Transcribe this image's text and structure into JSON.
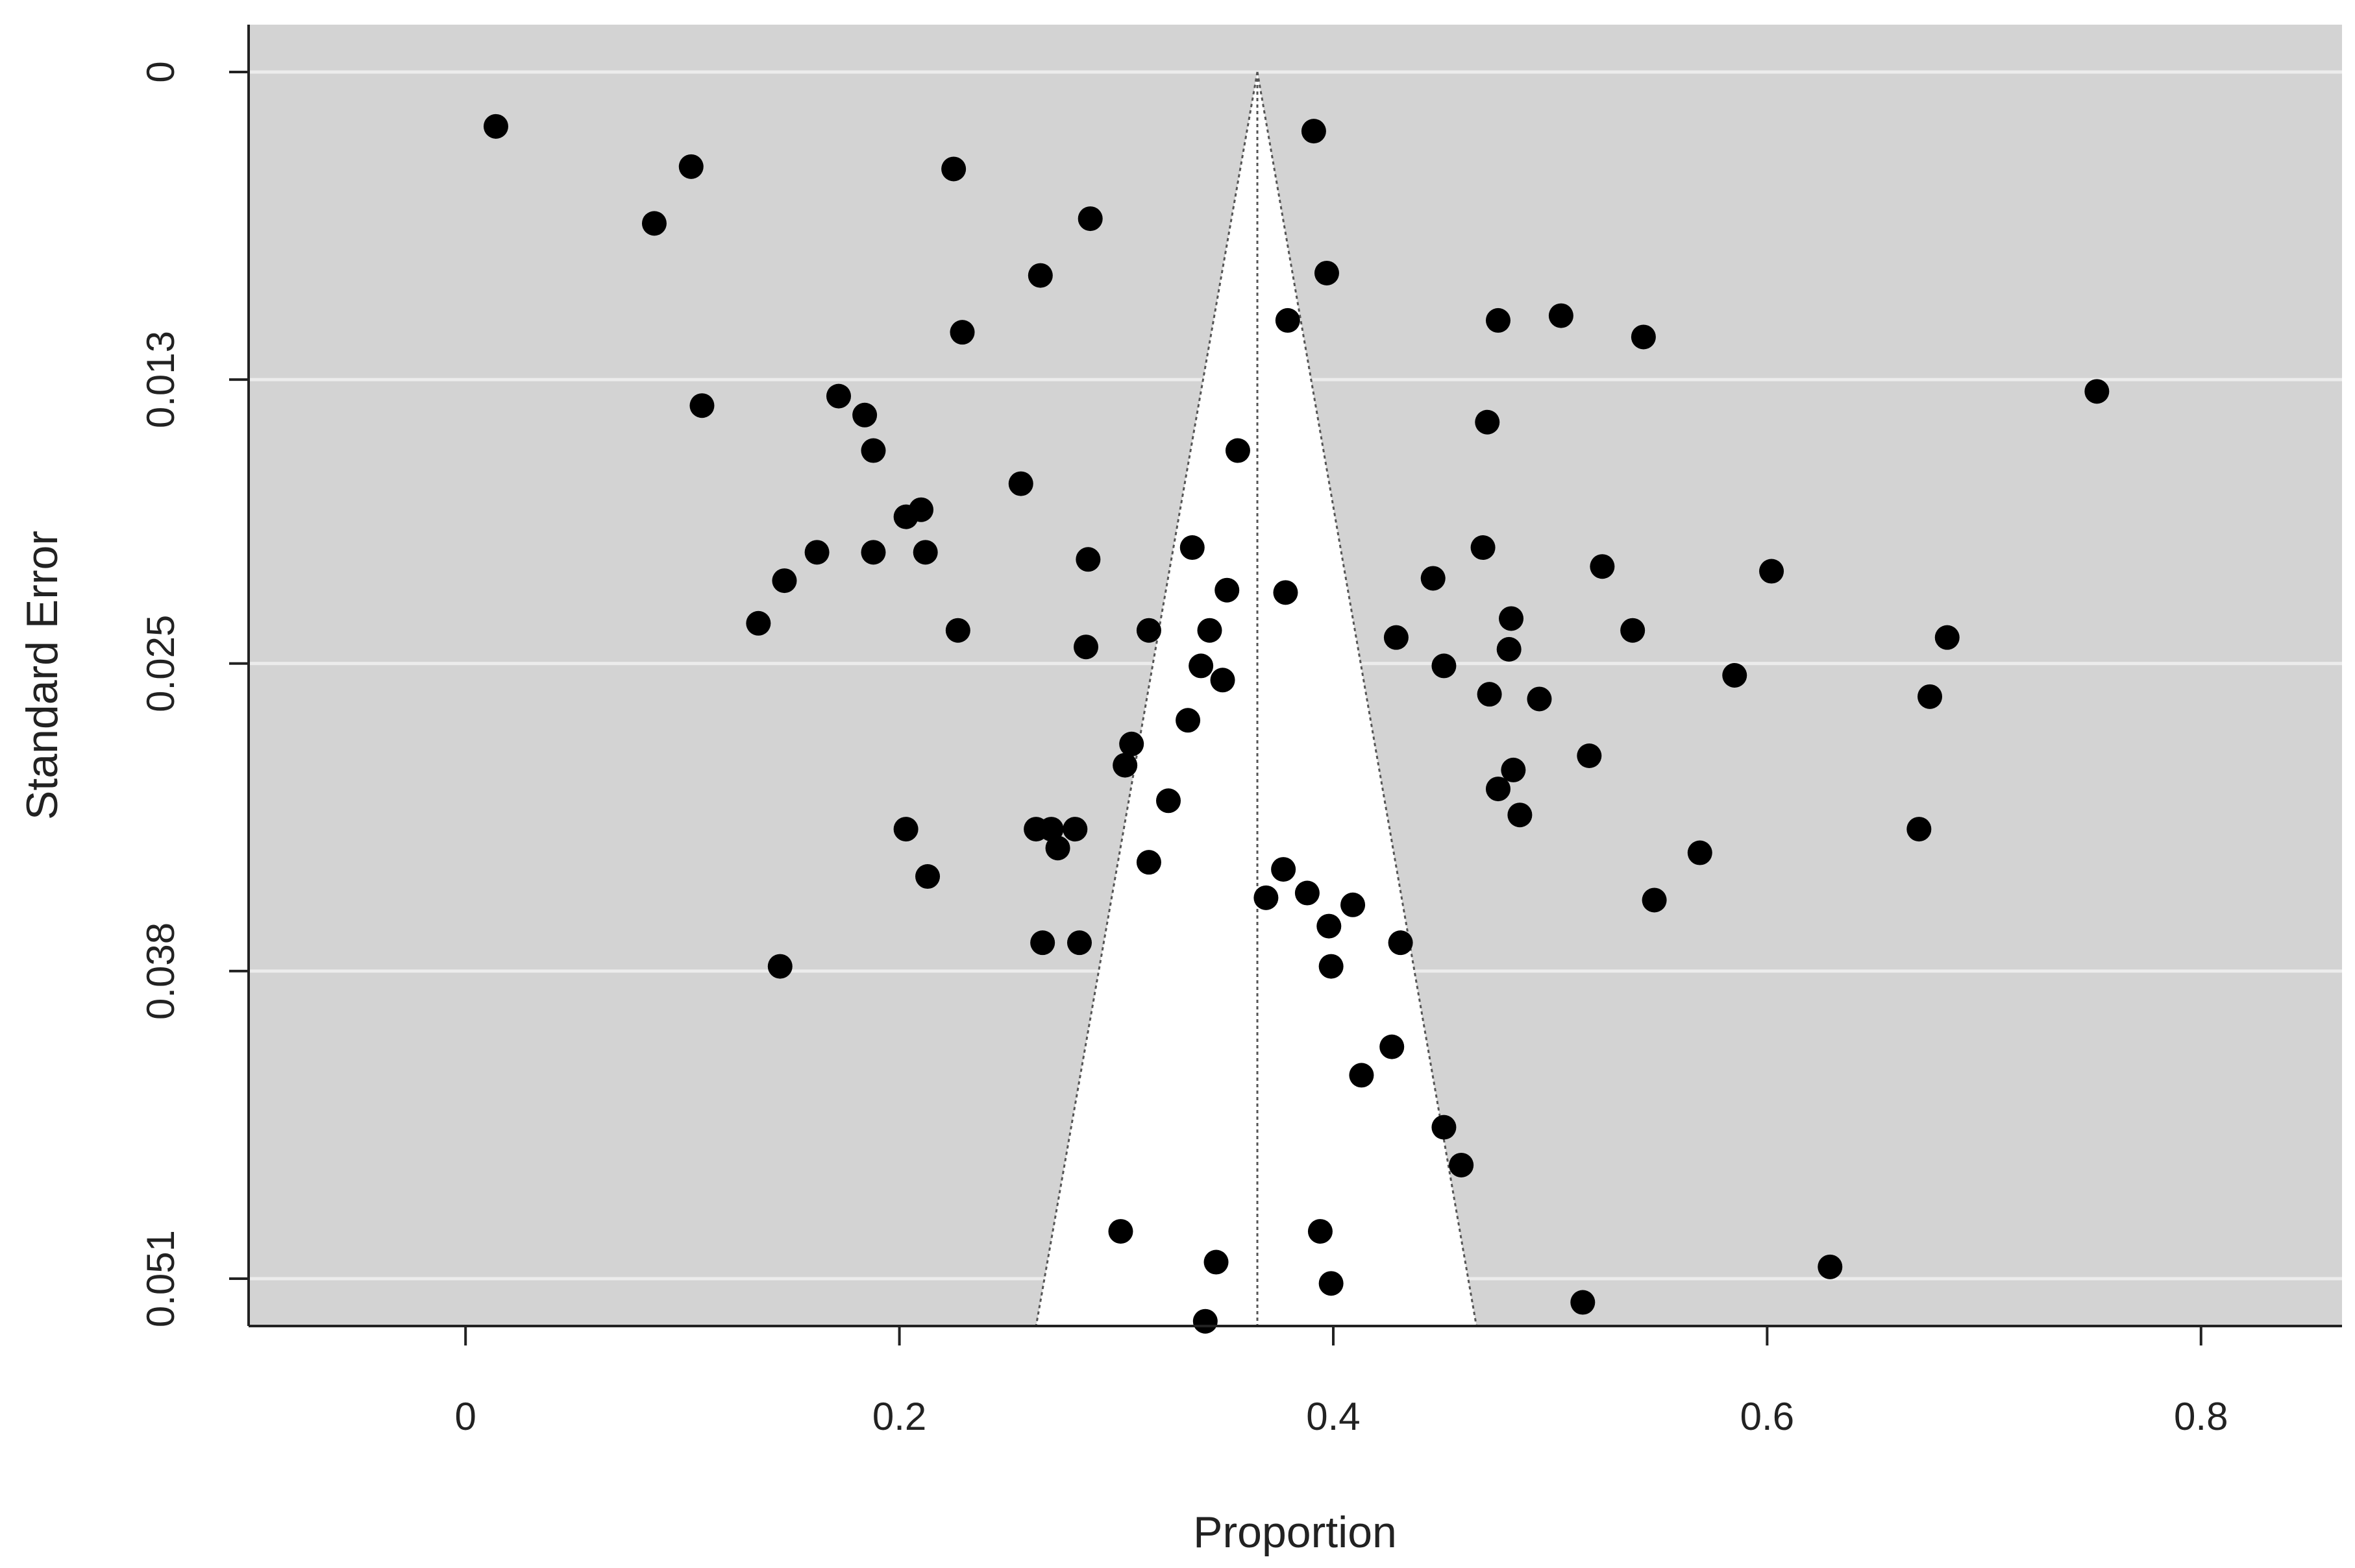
{
  "chart_data": {
    "type": "scatter",
    "subtype": "funnel",
    "title": "",
    "xlabel": "Proportion",
    "ylabel": "Standard Error",
    "xlim": [
      -0.1,
      0.865
    ],
    "ylim": [
      0.053,
      -0.002
    ],
    "y_reversed": true,
    "x_ticks": [
      0,
      0.2,
      0.4,
      0.6,
      0.8
    ],
    "x_tick_labels": [
      "0",
      "0.2",
      "0.4",
      "0.6",
      "0.8"
    ],
    "y_ticks": [
      0,
      0.013,
      0.025,
      0.038,
      0.051
    ],
    "y_tick_labels": [
      "0",
      "0.013",
      "0.025",
      "0.038",
      "0.051"
    ],
    "grid": "horizontal",
    "legend": "none",
    "estimate": 0.365,
    "funnel_bottom": [
      0.263,
      0.466
    ],
    "funnel_bottom_se": 0.053,
    "colors": {
      "panel_bg": "#d3d3d3",
      "grid": "#ececec",
      "funnel_fill": "#ffffff",
      "funnel_line": "#555555",
      "point": "#000000",
      "axis": "#222222"
    },
    "points": [
      [
        0.014,
        0.0023
      ],
      [
        0.104,
        0.004
      ],
      [
        0.087,
        0.0064
      ],
      [
        0.225,
        0.0041
      ],
      [
        0.288,
        0.0062
      ],
      [
        0.391,
        0.0025
      ],
      [
        0.265,
        0.0086
      ],
      [
        0.397,
        0.0085
      ],
      [
        0.229,
        0.011
      ],
      [
        0.379,
        0.0105
      ],
      [
        0.476,
        0.0105
      ],
      [
        0.505,
        0.0103
      ],
      [
        0.543,
        0.0112
      ],
      [
        0.109,
        0.0141
      ],
      [
        0.172,
        0.0137
      ],
      [
        0.184,
        0.0145
      ],
      [
        0.188,
        0.016
      ],
      [
        0.471,
        0.0148
      ],
      [
        0.752,
        0.0135
      ],
      [
        0.356,
        0.016
      ],
      [
        0.256,
        0.0174
      ],
      [
        0.203,
        0.0188
      ],
      [
        0.21,
        0.0185
      ],
      [
        0.162,
        0.0203
      ],
      [
        0.188,
        0.0203
      ],
      [
        0.212,
        0.0203
      ],
      [
        0.287,
        0.0206
      ],
      [
        0.335,
        0.0201
      ],
      [
        0.469,
        0.0201
      ],
      [
        0.147,
        0.0215
      ],
      [
        0.135,
        0.0233
      ],
      [
        0.227,
        0.0236
      ],
      [
        0.286,
        0.0243
      ],
      [
        0.315,
        0.0236
      ],
      [
        0.343,
        0.0236
      ],
      [
        0.351,
        0.0219
      ],
      [
        0.378,
        0.022
      ],
      [
        0.446,
        0.0214
      ],
      [
        0.524,
        0.0209
      ],
      [
        0.602,
        0.0211
      ],
      [
        0.482,
        0.0231
      ],
      [
        0.538,
        0.0236
      ],
      [
        0.429,
        0.0239
      ],
      [
        0.481,
        0.0244
      ],
      [
        0.683,
        0.0239
      ],
      [
        0.339,
        0.0251
      ],
      [
        0.349,
        0.0257
      ],
      [
        0.451,
        0.0251
      ],
      [
        0.585,
        0.0255
      ],
      [
        0.472,
        0.0263
      ],
      [
        0.495,
        0.0265
      ],
      [
        0.675,
        0.0264
      ],
      [
        0.333,
        0.0274
      ],
      [
        0.307,
        0.0284
      ],
      [
        0.304,
        0.0293
      ],
      [
        0.518,
        0.0289
      ],
      [
        0.483,
        0.0295
      ],
      [
        0.324,
        0.0308
      ],
      [
        0.476,
        0.0303
      ],
      [
        0.486,
        0.0314
      ],
      [
        0.203,
        0.032
      ],
      [
        0.263,
        0.032
      ],
      [
        0.27,
        0.032
      ],
      [
        0.281,
        0.032
      ],
      [
        0.273,
        0.0328
      ],
      [
        0.315,
        0.0334
      ],
      [
        0.213,
        0.034
      ],
      [
        0.377,
        0.0337
      ],
      [
        0.369,
        0.0349
      ],
      [
        0.388,
        0.0347
      ],
      [
        0.409,
        0.0352
      ],
      [
        0.398,
        0.0361
      ],
      [
        0.548,
        0.035
      ],
      [
        0.569,
        0.033
      ],
      [
        0.67,
        0.032
      ],
      [
        0.266,
        0.0368
      ],
      [
        0.283,
        0.0368
      ],
      [
        0.431,
        0.0368
      ],
      [
        0.145,
        0.0378
      ],
      [
        0.399,
        0.0378
      ],
      [
        0.427,
        0.0412
      ],
      [
        0.413,
        0.0424
      ],
      [
        0.451,
        0.0446
      ],
      [
        0.459,
        0.0462
      ],
      [
        0.302,
        0.049
      ],
      [
        0.394,
        0.049
      ],
      [
        0.346,
        0.0503
      ],
      [
        0.629,
        0.0505
      ],
      [
        0.399,
        0.0512
      ],
      [
        0.515,
        0.052
      ],
      [
        0.341,
        0.0528
      ]
    ]
  }
}
